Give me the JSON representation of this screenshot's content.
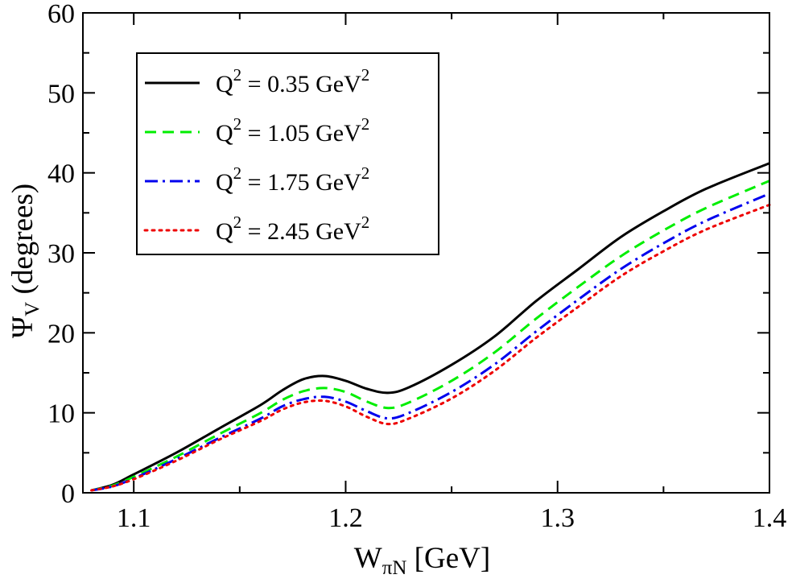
{
  "chart_data": {
    "type": "line",
    "title": "",
    "xlabel": {
      "main": "W",
      "sub": "πN",
      "rest": " [GeV]"
    },
    "ylabel": {
      "main": "Ψ",
      "sub": "V",
      "rest": " (degrees)"
    },
    "xlim": [
      1.076,
      1.4
    ],
    "ylim": [
      0,
      60
    ],
    "xticks": [
      {
        "value": 1.1,
        "label": "1.1"
      },
      {
        "value": 1.2,
        "label": "1.2"
      },
      {
        "value": 1.3,
        "label": "1.3"
      },
      {
        "value": 1.4,
        "label": "1.4"
      }
    ],
    "yticks": [
      {
        "value": 0,
        "label": "0"
      },
      {
        "value": 10,
        "label": "10"
      },
      {
        "value": 20,
        "label": "20"
      },
      {
        "value": 30,
        "label": "30"
      },
      {
        "value": 40,
        "label": "40"
      },
      {
        "value": 50,
        "label": "50"
      },
      {
        "value": 60,
        "label": "60"
      }
    ],
    "x_minor_step": 0.05,
    "y_minor_step": 5,
    "grid": false,
    "legend_position": "top-left",
    "x": [
      1.08,
      1.09,
      1.1,
      1.12,
      1.14,
      1.16,
      1.17,
      1.18,
      1.19,
      1.2,
      1.21,
      1.22,
      1.23,
      1.25,
      1.27,
      1.29,
      1.31,
      1.33,
      1.35,
      1.37,
      1.4
    ],
    "series": [
      {
        "name": "0.35",
        "legend": {
          "pre": "Q",
          "sup1": "2",
          "mid": " = 0.35 GeV",
          "sup2": "2"
        },
        "color": "#000000",
        "dash": "solid",
        "values": [
          0.3,
          1.0,
          2.3,
          5.0,
          8.0,
          11.0,
          12.8,
          14.2,
          14.6,
          14.0,
          13.0,
          12.5,
          13.2,
          16.0,
          19.5,
          24.0,
          28.0,
          32.0,
          35.2,
          38.0,
          41.2
        ]
      },
      {
        "name": "1.05",
        "legend": {
          "pre": "Q",
          "sup1": "2",
          "mid": " = 1.05 GeV",
          "sup2": "2"
        },
        "color": "#00ee00",
        "dash": "dashed",
        "values": [
          0.3,
          0.9,
          2.0,
          4.5,
          7.3,
          10.0,
          11.6,
          12.7,
          13.1,
          12.6,
          11.4,
          10.6,
          11.3,
          14.0,
          17.5,
          21.8,
          25.8,
          29.6,
          32.8,
          35.6,
          39.0
        ]
      },
      {
        "name": "1.75",
        "legend": {
          "pre": "Q",
          "sup1": "2",
          "mid": " = 1.75 GeV",
          "sup2": "2"
        },
        "color": "#0000ee",
        "dash": "dashdot",
        "values": [
          0.3,
          0.8,
          1.8,
          4.2,
          6.8,
          9.3,
          10.8,
          11.7,
          12.0,
          11.4,
          10.2,
          9.3,
          10.0,
          12.6,
          16.0,
          20.2,
          24.2,
          28.0,
          31.2,
          34.0,
          37.4
        ]
      },
      {
        "name": "2.45",
        "legend": {
          "pre": "Q",
          "sup1": "2",
          "mid": " = 2.45 GeV",
          "sup2": "2"
        },
        "color": "#ee0000",
        "dash": "dotted",
        "values": [
          0.3,
          0.8,
          1.7,
          4.0,
          6.6,
          9.0,
          10.4,
          11.3,
          11.5,
          10.8,
          9.5,
          8.6,
          9.3,
          11.8,
          15.2,
          19.4,
          23.3,
          27.1,
          30.2,
          32.9,
          36.0
        ]
      }
    ]
  }
}
